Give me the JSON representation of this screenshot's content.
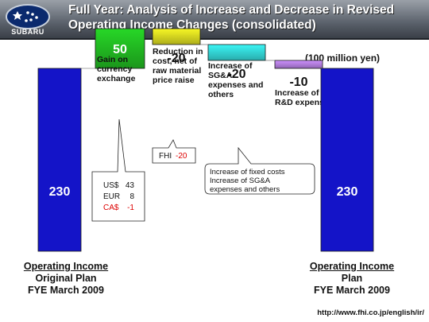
{
  "header": {
    "logo_text": "SUBARU",
    "title": "Full Year: Analysis of Increase and Decrease in Revised\nOperating Income Changes (consolidated)"
  },
  "unit_label": "(100 million yen)",
  "chart_data": {
    "type": "bar",
    "subtype": "waterfall",
    "categories": [
      "Operating Income Original Plan FYE March 2009",
      "Gain on currency exchange",
      "Reduction in cost, net of raw material price raise",
      "Increase of SG&A expenses and others",
      "Increase of R&D expenses",
      "Operating Income Plan FYE March 2009"
    ],
    "values": [
      230,
      50,
      -20,
      -20,
      -10,
      230
    ],
    "value_labels": [
      "230",
      "50",
      "-20",
      "-20",
      "-10",
      "230"
    ],
    "category_labels": [
      "",
      "Gain on\ncurrency\nexchange",
      "Reduction in\ncost, net of\nraw material\nprice raise",
      "Increase of\nSG&A\nexpenses and\nothers",
      "Increase of\nR&D expenses",
      ""
    ],
    "colors": [
      "#1414c8",
      "#22bb22",
      "#d8d820",
      "#33d6d6",
      "#b37ee0",
      "#1414c8"
    ],
    "ylim": [
      0,
      300
    ],
    "annotations": {
      "currency": [
        {
          "label": "US$",
          "value": "43",
          "color": "#111111"
        },
        {
          "label": "EUR",
          "value": "8",
          "color": "#111111"
        },
        {
          "label": "CA$",
          "value": "-1",
          "color": "#dd0000"
        }
      ],
      "fhi": {
        "label": "FHI",
        "value": "-20",
        "label_color": "#111111",
        "value_color": "#dd0000"
      },
      "sga_note": [
        "Increase of fixed costs",
        "Increase of SG&A",
        "expenses and others"
      ]
    }
  },
  "bottom_labels": {
    "left": {
      "line1": "Operating Income",
      "line2": "Original Plan",
      "line3": "FYE March 2009"
    },
    "right": {
      "line1": "Operating Income",
      "line2": "Plan",
      "line3": "FYE March 2009"
    }
  },
  "footer_url": "http://www.fhi.co.jp/english/ir/"
}
